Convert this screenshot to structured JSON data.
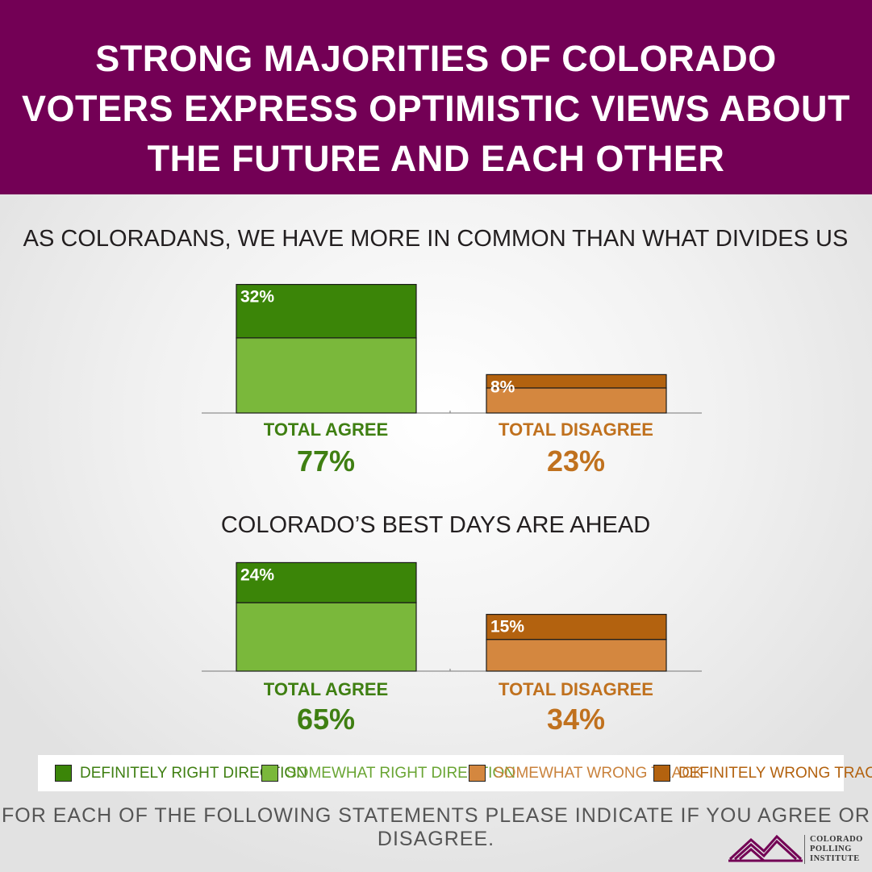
{
  "header": {
    "title": "STRONG MAJORITIES OF COLORADO VOTERS EXPRESS OPTIMISTIC VIEWS ABOUT THE FUTURE AND EACH OTHER"
  },
  "colors": {
    "header_bg": "#730055",
    "definitely_right": "#3b8508",
    "somewhat_right": "#7ab83b",
    "somewhat_wrong": "#d4873f",
    "definitely_wrong": "#b3620f",
    "agree_text": "#3f7f12",
    "disagree_text": "#c0711e"
  },
  "chart_data": [
    {
      "type": "bar",
      "title": "AS COLORADANS, WE HAVE MORE IN COMMON THAN WHAT DIVIDES US",
      "categories": [
        "TOTAL AGREE",
        "TOTAL DISAGREE"
      ],
      "totals": [
        "77%",
        "23%"
      ],
      "stacked": true,
      "series": [
        {
          "name": "DEFINITELY RIGHT DIRECTION",
          "values": [
            32,
            0
          ],
          "label": "32%"
        },
        {
          "name": "SOMEWHAT RIGHT DIRECTION",
          "values": [
            45,
            0
          ]
        },
        {
          "name": "SOMEWHAT WRONG TRACK",
          "values": [
            0,
            15
          ]
        },
        {
          "name": "DEFINITELY WRONG TRACK",
          "values": [
            0,
            8
          ],
          "label": "8%"
        }
      ]
    },
    {
      "type": "bar",
      "title": "COLORADO’S BEST DAYS ARE AHEAD",
      "categories": [
        "TOTAL AGREE",
        "TOTAL DISAGREE"
      ],
      "totals": [
        "65%",
        "34%"
      ],
      "stacked": true,
      "series": [
        {
          "name": "DEFINITELY RIGHT DIRECTION",
          "values": [
            24,
            0
          ],
          "label": "24%"
        },
        {
          "name": "SOMEWHAT RIGHT DIRECTION",
          "values": [
            41,
            0
          ]
        },
        {
          "name": "SOMEWHAT WRONG TRACK",
          "values": [
            0,
            19
          ]
        },
        {
          "name": "DEFINITELY WRONG TRACK",
          "values": [
            0,
            15
          ],
          "label": "15%"
        }
      ]
    }
  ],
  "legend": [
    {
      "label": "DEFINITELY RIGHT DIRECTION",
      "color": "#3b8508",
      "text_color": "#3f7f12"
    },
    {
      "label": "SOMEWHAT RIGHT DIRECTION",
      "color": "#7ab83b",
      "text_color": "#6aa534"
    },
    {
      "label": "SOMEWHAT WRONG TRACK",
      "color": "#d4873f",
      "text_color": "#c9823c"
    },
    {
      "label": "DEFINITELY WRONG TRACK",
      "color": "#b3620f",
      "text_color": "#b3620f"
    }
  ],
  "footnote": "FOR EACH OF THE FOLLOWING STATEMENTS PLEASE INDICATE IF YOU AGREE OR DISAGREE.",
  "logo": {
    "line1": "COLORADO",
    "line2": "POLLING",
    "line3": "INSTITUTE"
  }
}
